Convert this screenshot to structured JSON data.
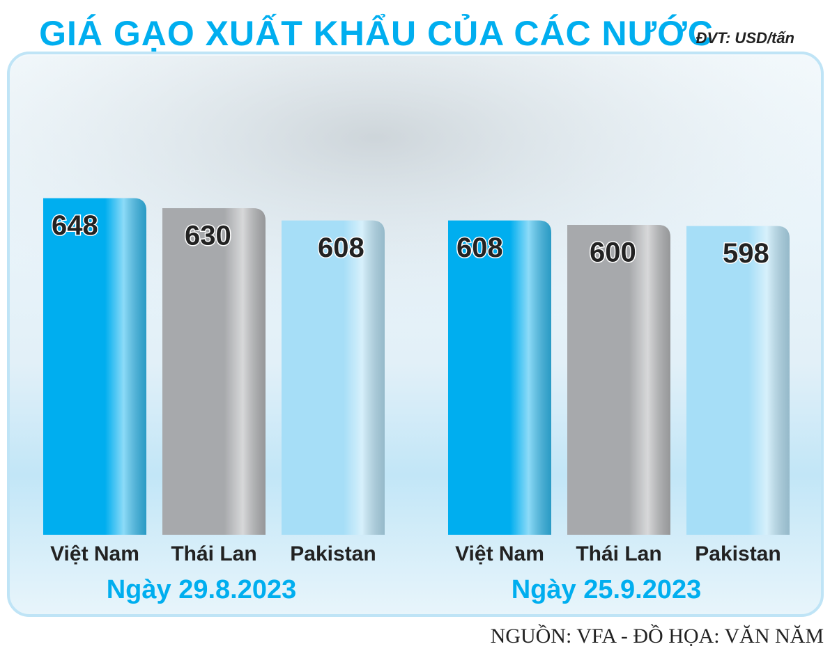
{
  "chart_data": {
    "type": "bar",
    "title": "GIÁ GẠO XUẤT KHẨU CỦA CÁC NƯỚC",
    "unit": "ĐVT: USD/tấn",
    "categories": [
      "Việt Nam",
      "Thái Lan",
      "Pakistan"
    ],
    "colors": [
      "#00aeef",
      "#a7a9ac",
      "#a6def7"
    ],
    "series": [
      {
        "name": "Ngày 29.8.2023",
        "values": [
          648,
          630,
          608
        ]
      },
      {
        "name": "Ngày 25.9.2023",
        "values": [
          608,
          600,
          598
        ]
      }
    ],
    "ylim": [
      44,
      700
    ],
    "source": "NGUỒN: VFA - ĐỒ HỌA: VĂN NĂM"
  }
}
